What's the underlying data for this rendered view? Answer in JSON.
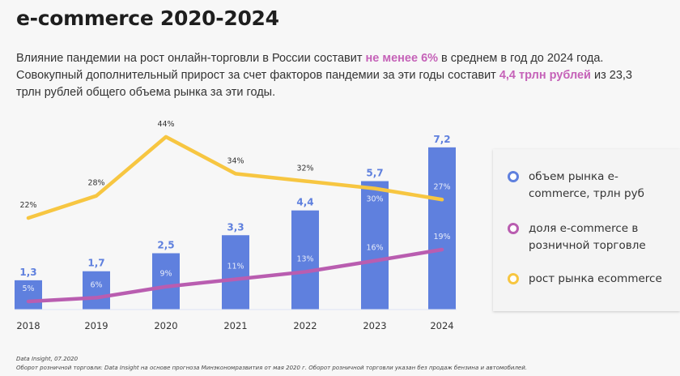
{
  "title": "e-commerce 2020-2024",
  "intro": [
    {
      "text": "Влияние пандемии на рост онлайн-торговли в России составит ",
      "hl": false
    },
    {
      "text": "не менее 6%",
      "hl": true
    },
    {
      "text": " в среднем в год до 2024 года. Совокупный дополнительный прирост за счет факторов пандемии за эти годы составит ",
      "hl": false
    },
    {
      "text": "4,4 трлн рублей",
      "hl": true
    },
    {
      "text": " из 23,3 трлн рублей общего объема рынка за эти годы.",
      "hl": false
    }
  ],
  "colors": {
    "bars": "#5f80de",
    "share": "#b95db0",
    "growth": "#f7c641",
    "highlight": "#c562b8"
  },
  "chart_data": {
    "type": "bar+line",
    "categories": [
      "2018",
      "2019",
      "2020",
      "2021",
      "2022",
      "2023",
      "2024"
    ],
    "series": [
      {
        "name": "объем рынка e-commerce, трлн руб",
        "type": "bar",
        "values": [
          1.3,
          1.7,
          2.5,
          3.3,
          4.4,
          5.7,
          7.2
        ],
        "labels": [
          "1,3",
          "1,7",
          "2,5",
          "3,3",
          "4,4",
          "5,7",
          "7,2"
        ],
        "color": "#5f80de"
      },
      {
        "name": "доля e-commerce в розничной торговле",
        "type": "line",
        "values": [
          5,
          6,
          9,
          11,
          13,
          16,
          19
        ],
        "labels": [
          "5%",
          "6%",
          "9%",
          "11%",
          "13%",
          "16%",
          "19%"
        ],
        "color": "#b95db0"
      },
      {
        "name": "рост рынка ecommerce",
        "type": "line",
        "values": [
          22,
          28,
          44,
          34,
          32,
          30,
          27
        ],
        "labels": [
          "22%",
          "28%",
          "44%",
          "34%",
          "32%",
          "30%",
          "27%"
        ],
        "color": "#f7c641"
      }
    ],
    "grid": false,
    "legend": "right"
  },
  "legend": [
    {
      "label": "объем рынка e-commerce, трлн руб",
      "color": "#5f80de"
    },
    {
      "label": "доля e-commerce в розничной торговле",
      "color": "#b95db0"
    },
    {
      "label": "рост рынка ecommerce",
      "color": "#f7c641"
    }
  ],
  "notes": {
    "source": "Data Insight, 07.2020",
    "detail": "Оборот розничной торговли: Data Insight на основе прогноза Минэкономразвития от мая 2020 г. Оборот розничной торговли указан без продаж бензина и автомобилей."
  }
}
